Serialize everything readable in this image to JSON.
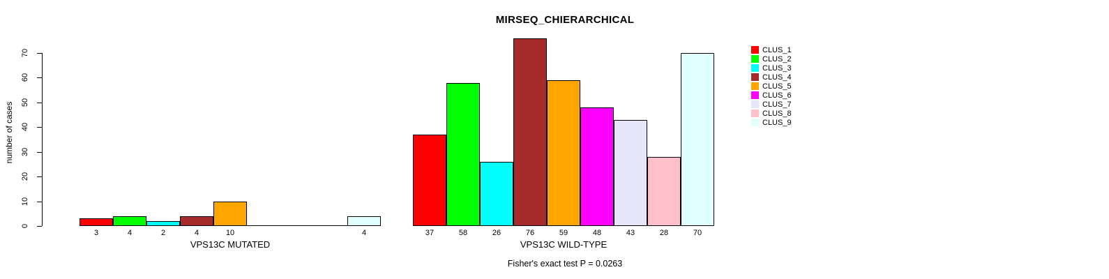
{
  "chart_data": {
    "type": "bar",
    "title": "MIRSEQ_CHIERARCHICAL",
    "ylabel": "number of cases",
    "ylim": [
      0,
      70
    ],
    "yticks": [
      0,
      10,
      20,
      30,
      40,
      50,
      60,
      70
    ],
    "grid": false,
    "legend_position": "right",
    "legend": [
      {
        "label": "CLUS_1",
        "color": "#FF0000"
      },
      {
        "label": "CLUS_2",
        "color": "#00FF00"
      },
      {
        "label": "CLUS_3",
        "color": "#00FFFF"
      },
      {
        "label": "CLUS_4",
        "color": "#A52A2A"
      },
      {
        "label": "CLUS_5",
        "color": "#FFA500"
      },
      {
        "label": "CLUS_6",
        "color": "#FF00FF"
      },
      {
        "label": "CLUS_7",
        "color": "#E6E6FA"
      },
      {
        "label": "CLUS_8",
        "color": "#FFC0CB"
      },
      {
        "label": "CLUS_9",
        "color": "#E0FFFF"
      }
    ],
    "groups": [
      {
        "label": "VPS13C MUTATED",
        "values": [
          3,
          4,
          2,
          4,
          10,
          0,
          0,
          0,
          4
        ]
      },
      {
        "label": "VPS13C WILD-TYPE",
        "values": [
          37,
          58,
          26,
          76,
          59,
          48,
          43,
          28,
          70
        ]
      }
    ],
    "footnote": "Fisher's exact test P = 0.0263"
  }
}
